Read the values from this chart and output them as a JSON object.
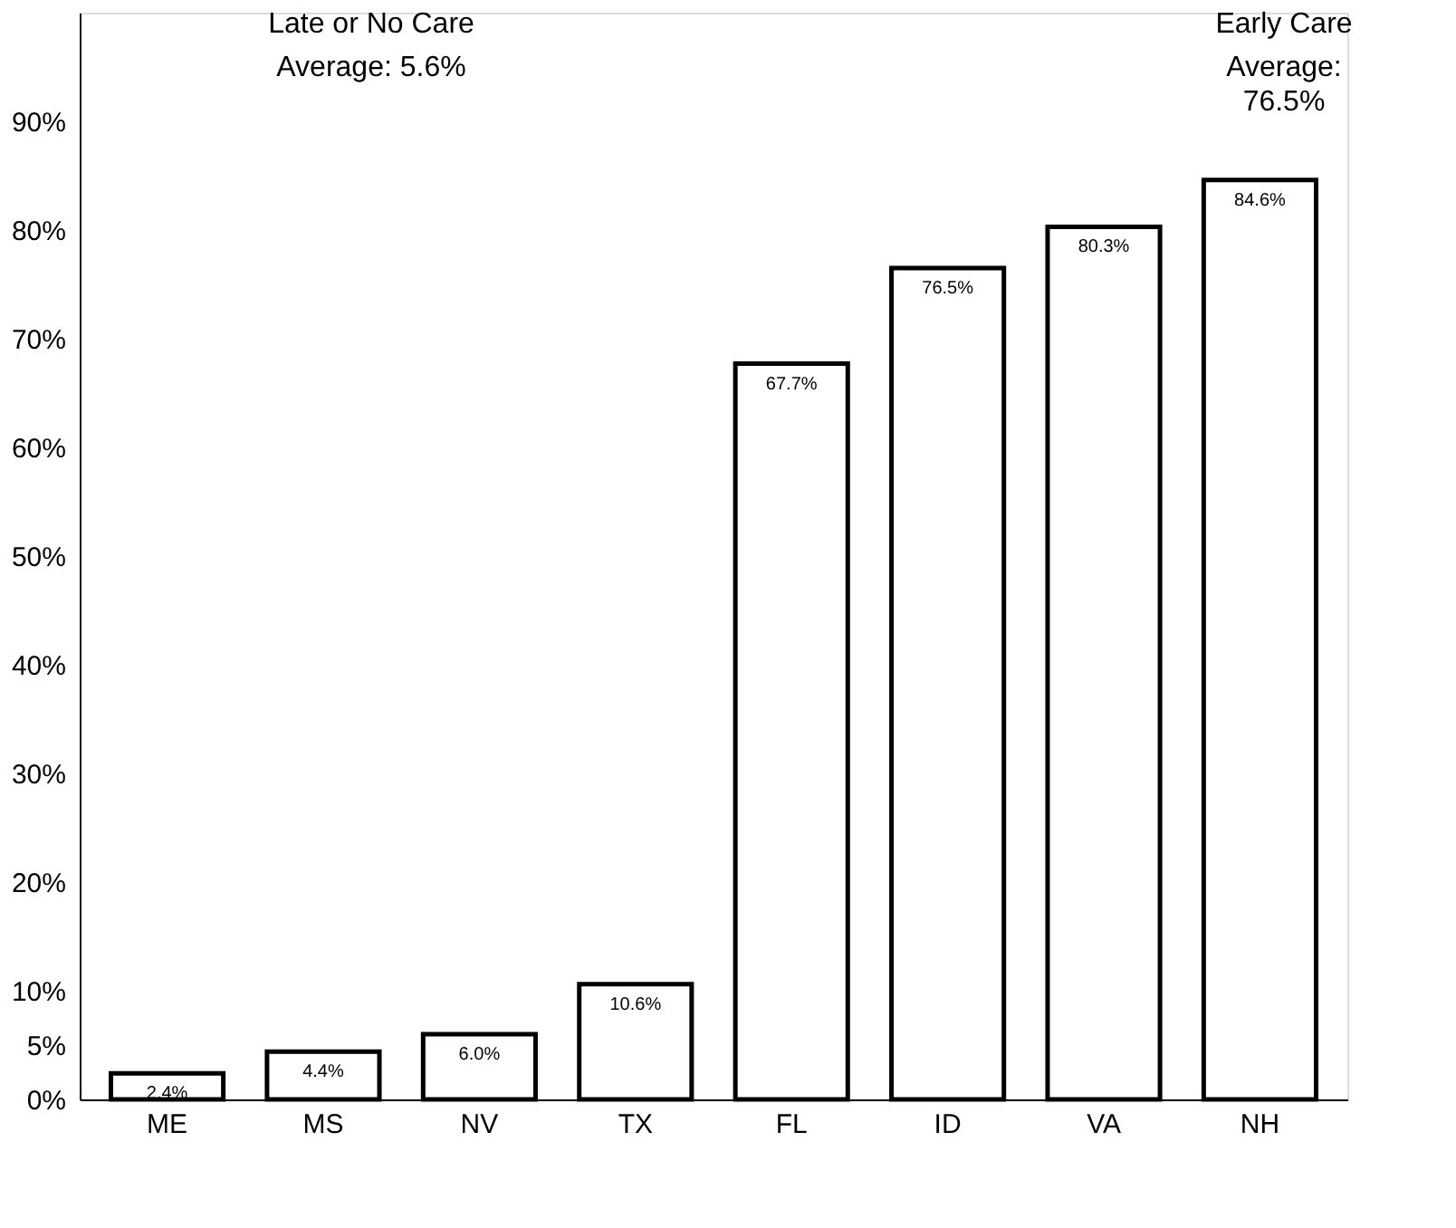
{
  "chart_data": {
    "type": "bar",
    "categories": [
      "ME",
      "MS",
      "NV",
      "TX",
      "FL",
      "ID",
      "VA",
      "NH"
    ],
    "values": [
      2.4,
      4.4,
      6.0,
      10.6,
      67.7,
      76.5,
      80.3,
      84.6
    ],
    "color": "#ffffff",
    "value_labels": [
      "2.4%",
      "4.4%",
      "6.0%",
      "10.6%",
      "67.7%",
      "76.5%",
      "80.3%",
      "84.6%"
    ],
    "ylim": [
      0,
      100
    ],
    "yticks": [
      {
        "value": 0,
        "label": "0%"
      },
      {
        "value": 5,
        "label": "5%"
      },
      {
        "value": 10,
        "label": "10%"
      },
      {
        "value": 20,
        "label": "20%"
      },
      {
        "value": 30,
        "label": "30%"
      },
      {
        "value": 40,
        "label": "40%"
      },
      {
        "value": 50,
        "label": "50%"
      },
      {
        "value": 60,
        "label": "60%"
      },
      {
        "value": 70,
        "label": "70%"
      },
      {
        "value": 80,
        "label": "80%"
      },
      {
        "value": 90,
        "label": "90%"
      }
    ],
    "annotations": [
      "Late or No Care",
      "Average: 5.6%",
      "Early Care",
      "Average:\n76.5%"
    ],
    "grid": false
  }
}
